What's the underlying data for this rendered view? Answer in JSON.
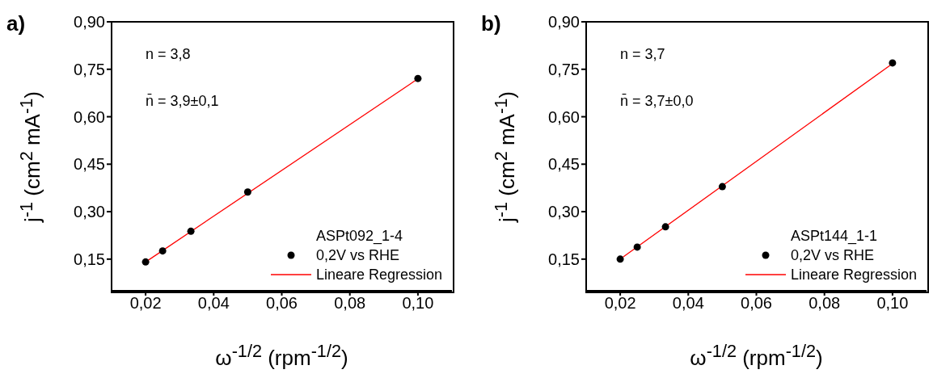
{
  "chart_data": [
    {
      "type": "scatter",
      "title": "a)",
      "xlabel": "ω$^{-1/2}$ (rpm$^{-1/2}$)",
      "ylabel": "j$^{-1}$ (cm$^{2}$ mA$^{-1}$)",
      "legend_title": "ASPt092_1-4",
      "legend": "bottom right",
      "annotations": [
        "n = 3,8",
        "n̄ = 3,9±0,1"
      ],
      "xlim": [
        0.01,
        0.11
      ],
      "xticks": [
        {
          "value": 0.02,
          "label": "0,02"
        },
        {
          "value": 0.04,
          "label": "0,04"
        },
        {
          "value": 0.06,
          "label": "0,06"
        },
        {
          "value": 0.08,
          "label": "0,08"
        },
        {
          "value": 0.1,
          "label": "0,10"
        }
      ],
      "ylim": [
        0.05,
        0.9
      ],
      "yticks": [
        {
          "value": 0.15,
          "label": "0,15"
        },
        {
          "value": 0.3,
          "label": "0,30"
        },
        {
          "value": 0.45,
          "label": "0,45"
        },
        {
          "value": 0.6,
          "label": "0,60"
        },
        {
          "value": 0.75,
          "label": "0,75"
        },
        {
          "value": 0.9,
          "label": "0,90"
        }
      ],
      "series": [
        {
          "name": "0,2V vs RHE",
          "marker": "circle",
          "color": "#000000",
          "x": [
            0.02,
            0.025,
            0.0333,
            0.05,
            0.1
          ],
          "values": [
            0.141,
            0.176,
            0.238,
            0.362,
            0.721
          ]
        },
        {
          "name": "Lineare Regression",
          "type": "line",
          "color": "#ff0000",
          "x": [
            0.02,
            0.1
          ],
          "values": [
            0.141,
            0.72
          ]
        }
      ]
    },
    {
      "type": "scatter",
      "title": "b)",
      "xlabel": "ω$^{-1/2}$ (rpm$^{-1/2}$)",
      "ylabel": "j$^{-1}$ (cm$^{2}$ mA$^{-1}$)",
      "legend_title": "ASPt144_1-1",
      "legend": "bottom right",
      "annotations": [
        "n = 3,7",
        "n̄ = 3,7±0,0"
      ],
      "xlim": [
        0.01,
        0.11
      ],
      "xticks": [
        {
          "value": 0.02,
          "label": "0,02"
        },
        {
          "value": 0.04,
          "label": "0,04"
        },
        {
          "value": 0.06,
          "label": "0,06"
        },
        {
          "value": 0.08,
          "label": "0,08"
        },
        {
          "value": 0.1,
          "label": "0,10"
        }
      ],
      "ylim": [
        0.05,
        0.9
      ],
      "yticks": [
        {
          "value": 0.15,
          "label": "0,15"
        },
        {
          "value": 0.3,
          "label": "0,30"
        },
        {
          "value": 0.45,
          "label": "0,45"
        },
        {
          "value": 0.6,
          "label": "0,60"
        },
        {
          "value": 0.75,
          "label": "0,75"
        },
        {
          "value": 0.9,
          "label": "0,90"
        }
      ],
      "series": [
        {
          "name": "0,2V vs RHE",
          "marker": "circle",
          "color": "#000000",
          "x": [
            0.02,
            0.025,
            0.0333,
            0.05,
            0.1
          ],
          "values": [
            0.15,
            0.188,
            0.252,
            0.379,
            0.77
          ]
        },
        {
          "name": "Lineare Regression",
          "type": "line",
          "color": "#ff0000",
          "x": [
            0.02,
            0.1
          ],
          "values": [
            0.15,
            0.768
          ]
        }
      ]
    }
  ]
}
